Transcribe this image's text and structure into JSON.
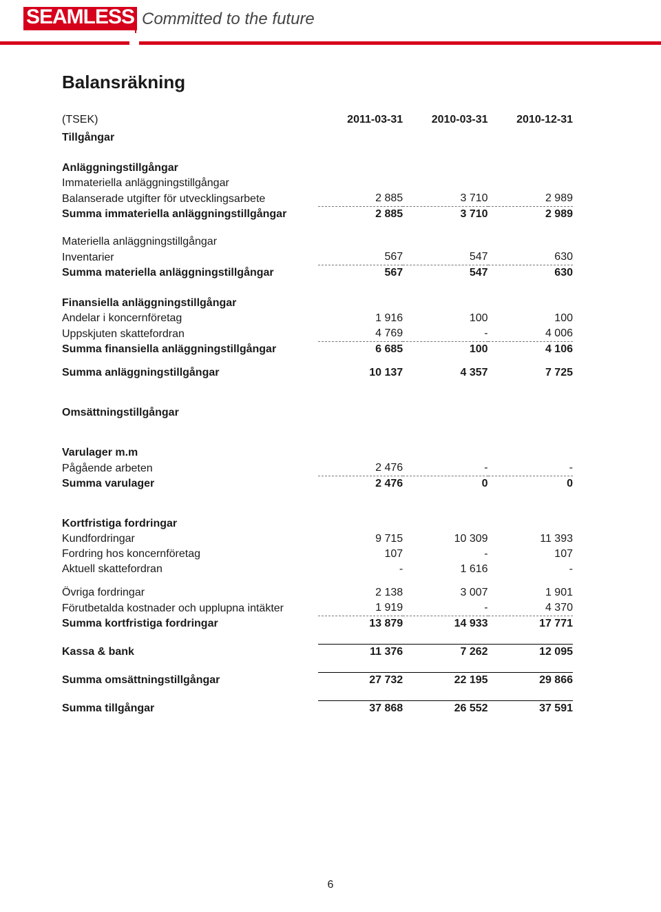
{
  "brand": {
    "logo": "SEAMLESS",
    "tagline": "Committed to the future"
  },
  "page_title": "Balansräkning",
  "columns": {
    "label": "(TSEK)",
    "c1": "2011-03-31",
    "c2": "2010-03-31",
    "c3": "2010-12-31"
  },
  "section_assets": "Tillgångar",
  "fixed_assets_hd": "Anläggningstillgångar",
  "intang_hd": "Immateriella anläggningstillgångar",
  "row_baldev": {
    "label": "Balanserade utgifter för utvecklingsarbete",
    "c1": "2 885",
    "c2": "3 710",
    "c3": "2 989"
  },
  "row_sumintang": {
    "label": "Summa immateriella anläggningstillgångar",
    "c1": "2 885",
    "c2": "3 710",
    "c3": "2 989"
  },
  "tang_hd": "Materiella anläggningstillgångar",
  "row_inv": {
    "label": "Inventarier",
    "c1": "567",
    "c2": "547",
    "c3": "630"
  },
  "row_sumtang": {
    "label": "Summa materiella anläggningstillgångar",
    "c1": "567",
    "c2": "547",
    "c3": "630"
  },
  "fin_hd": "Finansiella anläggningstillgångar",
  "row_andel": {
    "label": "Andelar i koncernföretag",
    "c1": "1 916",
    "c2": "100",
    "c3": "100"
  },
  "row_uppsk": {
    "label": "Uppskjuten skattefordran",
    "c1": "4 769",
    "c2": "-",
    "c3": "4 006"
  },
  "row_sumfin": {
    "label": "Summa finansiella anläggningstillgångar",
    "c1": "6 685",
    "c2": "100",
    "c3": "4 106"
  },
  "row_sumfixed": {
    "label": "Summa anläggningstillgångar",
    "c1": "10 137",
    "c2": "4 357",
    "c3": "7 725"
  },
  "current_hd": "Omsättningstillgångar",
  "inv_hd": "Varulager m.m",
  "row_paga": {
    "label": "Pågående arbeten",
    "c1": "2 476",
    "c2": "-",
    "c3": "-"
  },
  "row_sumlager": {
    "label": "Summa varulager",
    "c1": "2 476",
    "c2": "0",
    "c3": "0"
  },
  "recv_hd": "Kortfristiga fordringar",
  "row_kund": {
    "label": "Kundfordringar",
    "c1": "9 715",
    "c2": "10 309",
    "c3": "11 393"
  },
  "row_fordkonc": {
    "label": "Fordring hos koncernföretag",
    "c1": "107",
    "c2": "-",
    "c3": "107"
  },
  "row_aktskatt": {
    "label": "Aktuell skattefordran",
    "c1": "-",
    "c2": "1 616",
    "c3": "-"
  },
  "row_ovriga": {
    "label": "Övriga fordringar",
    "c1": "2 138",
    "c2": "3 007",
    "c3": "1 901"
  },
  "row_forut": {
    "label": "Förutbetalda kostnader och upplupna intäkter",
    "c1": "1 919",
    "c2": "-",
    "c3": "4 370"
  },
  "row_sumrecv": {
    "label": "Summa kortfristiga fordringar",
    "c1": "13 879",
    "c2": "14 933",
    "c3": "17 771"
  },
  "row_kassa": {
    "label": "Kassa & bank",
    "c1": "11 376",
    "c2": "7 262",
    "c3": "12 095"
  },
  "row_sumcurr": {
    "label": "Summa omsättningstillgångar",
    "c1": "27 732",
    "c2": "22 195",
    "c3": "29 866"
  },
  "row_sumtotal": {
    "label": "Summa tillgångar",
    "c1": "37 868",
    "c2": "26 552",
    "c3": "37 591"
  },
  "page_number": "6",
  "colors": {
    "accent": "#d6001c",
    "text": "#1a1a1a",
    "background": "#ffffff"
  }
}
